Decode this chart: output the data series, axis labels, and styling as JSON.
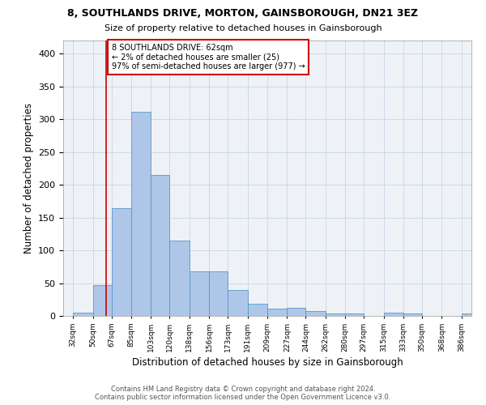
{
  "title1": "8, SOUTHLANDS DRIVE, MORTON, GAINSBOROUGH, DN21 3EZ",
  "title2": "Size of property relative to detached houses in Gainsborough",
  "xlabel": "Distribution of detached houses by size in Gainsborough",
  "ylabel": "Number of detached properties",
  "bin_labels": [
    "32sqm",
    "50sqm",
    "67sqm",
    "85sqm",
    "103sqm",
    "120sqm",
    "138sqm",
    "156sqm",
    "173sqm",
    "191sqm",
    "209sqm",
    "227sqm",
    "244sqm",
    "262sqm",
    "280sqm",
    "297sqm",
    "315sqm",
    "333sqm",
    "350sqm",
    "368sqm",
    "386sqm"
  ],
  "bin_edges": [
    32,
    50,
    67,
    85,
    103,
    120,
    138,
    156,
    173,
    191,
    209,
    227,
    244,
    262,
    280,
    297,
    315,
    333,
    350,
    368,
    386
  ],
  "bar_heights": [
    5,
    47,
    164,
    311,
    215,
    115,
    68,
    68,
    39,
    19,
    11,
    12,
    7,
    4,
    4,
    0,
    5,
    4,
    0,
    0,
    4
  ],
  "bar_color": "#aec6e8",
  "bar_edge_color": "#5599cc",
  "property_size": 62,
  "vline_color": "#cc0000",
  "annotation_text": "8 SOUTHLANDS DRIVE: 62sqm\n← 2% of detached houses are smaller (25)\n97% of semi-detached houses are larger (977) →",
  "annotation_box_color": "#ffffff",
  "annotation_box_edge": "#cc0000",
  "grid_color": "#ccd9e8",
  "background_color": "#eef2f7",
  "footer_line1": "Contains HM Land Registry data © Crown copyright and database right 2024.",
  "footer_line2": "Contains public sector information licensed under the Open Government Licence v3.0.",
  "ylim": [
    0,
    420
  ],
  "yticks": [
    0,
    50,
    100,
    150,
    200,
    250,
    300,
    350,
    400
  ]
}
